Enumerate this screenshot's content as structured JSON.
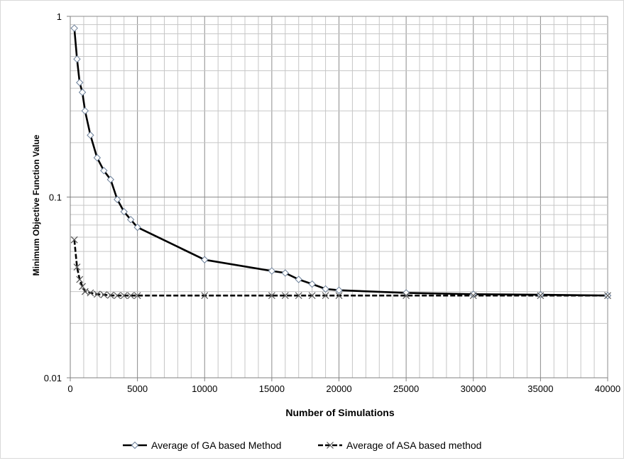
{
  "chart_data": {
    "type": "line",
    "xlabel": "Number of Simulations",
    "ylabel": "Minimum Objective Function Value",
    "xlim": [
      0,
      40000
    ],
    "ylim": [
      0.01,
      1
    ],
    "yscale": "log",
    "x_ticks": [
      0,
      5000,
      10000,
      15000,
      20000,
      25000,
      30000,
      35000,
      40000
    ],
    "x_tick_labels": [
      "0",
      "5000",
      "10000",
      "15000",
      "20000",
      "25000",
      "30000",
      "35000",
      "40000"
    ],
    "y_ticks": [
      0.01,
      0.1,
      1
    ],
    "y_tick_labels": [
      "0.01",
      "0.1",
      "1"
    ],
    "grid": true,
    "legend_position": "bottom",
    "series": [
      {
        "name": "Average of GA based Method",
        "line_style": "solid",
        "marker": "diamond",
        "color": "#000000",
        "x": [
          300,
          500,
          700,
          900,
          1100,
          1500,
          2000,
          2500,
          3000,
          3500,
          4000,
          4500,
          5000,
          10000,
          15000,
          16000,
          17000,
          18000,
          19000,
          20000,
          25000,
          30000,
          35000,
          40000
        ],
        "y": [
          0.86,
          0.58,
          0.43,
          0.38,
          0.3,
          0.22,
          0.165,
          0.14,
          0.125,
          0.097,
          0.083,
          0.075,
          0.068,
          0.045,
          0.039,
          0.038,
          0.035,
          0.033,
          0.031,
          0.0305,
          0.0295,
          0.029,
          0.0288,
          0.0285
        ]
      },
      {
        "name": "Average of ASA based method",
        "line_style": "dashed",
        "marker": "x",
        "color": "#000000",
        "x": [
          300,
          500,
          700,
          900,
          1100,
          1500,
          2000,
          2500,
          3000,
          3500,
          4000,
          4500,
          5000,
          10000,
          15000,
          16000,
          17000,
          18000,
          19000,
          20000,
          25000,
          30000,
          35000,
          40000
        ],
        "y": [
          0.058,
          0.041,
          0.035,
          0.032,
          0.03,
          0.0295,
          0.029,
          0.0288,
          0.0286,
          0.0285,
          0.0285,
          0.0285,
          0.0285,
          0.0285,
          0.0285,
          0.0285,
          0.0285,
          0.0285,
          0.0285,
          0.0285,
          0.0285,
          0.0285,
          0.0285,
          0.0285
        ]
      }
    ]
  }
}
